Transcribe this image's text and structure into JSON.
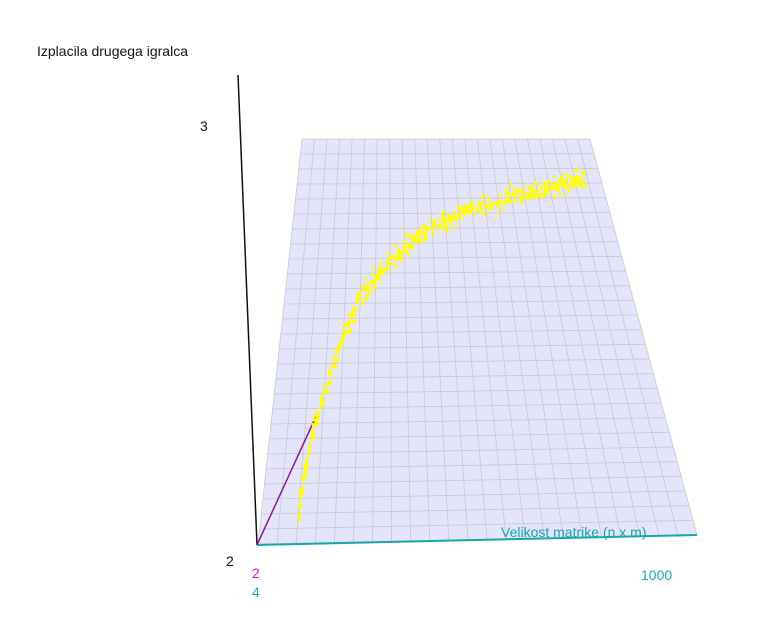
{
  "chart_data": {
    "type": "scatter",
    "view": "3d-perspective",
    "title": "",
    "zlabel": "Izplacila drugega igralca",
    "xlabel": "Velikost matrike (n x m)",
    "ylabel": "",
    "z_ticks": [
      "3",
      "2"
    ],
    "x_ticks": [
      "4",
      "1000"
    ],
    "y_ticks": [
      "2"
    ],
    "zlim": [
      2,
      3
    ],
    "xlim": [
      4,
      1000
    ],
    "grid": true,
    "colors": {
      "points": "#ffff00",
      "plane": "#e4e4fb",
      "grid": "#c9c9c9",
      "x_axis": "#17a7aa",
      "y_axis": "#8b1b93",
      "z_axis": "#111111",
      "x_tick": "#1aa9ad",
      "y_tick": "#cc18c4"
    },
    "series": [
      {
        "trend": [
          [
            4,
            2.1
          ],
          [
            10,
            2.2
          ],
          [
            20,
            2.33
          ],
          [
            35,
            2.45
          ],
          [
            50,
            2.55
          ],
          [
            70,
            2.63
          ],
          [
            100,
            2.69
          ],
          [
            150,
            2.75
          ],
          [
            200,
            2.79
          ],
          [
            300,
            2.83
          ],
          [
            400,
            2.85
          ],
          [
            500,
            2.87
          ],
          [
            600,
            2.88
          ],
          [
            700,
            2.89
          ],
          [
            800,
            2.9
          ],
          [
            900,
            2.905
          ],
          [
            1000,
            2.91
          ]
        ],
        "n_points": 620
      }
    ]
  }
}
